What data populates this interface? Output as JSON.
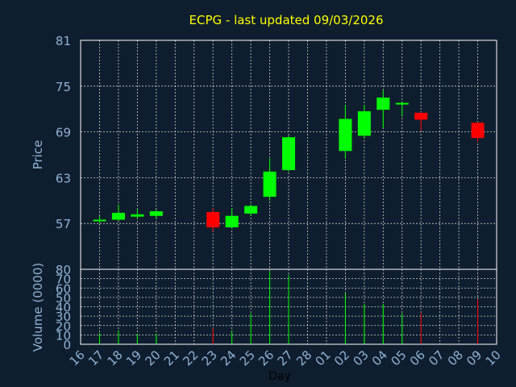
{
  "chart_data": [
    {
      "type": "candlestick",
      "title": "ECPG - last updated 09/03/2026",
      "ylabel": "Price",
      "ylim": [
        51,
        81
      ],
      "yticks": [
        57,
        63,
        69,
        75,
        81
      ],
      "categories": [
        "16",
        "17",
        "18",
        "19",
        "20",
        "21",
        "22",
        "23",
        "24",
        "25",
        "26",
        "27",
        "28",
        "01",
        "02",
        "03",
        "04",
        "05",
        "06",
        "07",
        "08",
        "09",
        "10"
      ],
      "up_color": "#00ff00",
      "down_color": "#ff0000",
      "series": [
        {
          "day": "17",
          "open": 57.3,
          "high": 58.0,
          "low": 57.0,
          "close": 57.5
        },
        {
          "day": "18",
          "open": 57.5,
          "high": 59.5,
          "low": 57.3,
          "close": 58.4
        },
        {
          "day": "19",
          "open": 57.9,
          "high": 58.9,
          "low": 57.6,
          "close": 58.2
        },
        {
          "day": "20",
          "open": 58.0,
          "high": 58.8,
          "low": 57.7,
          "close": 58.6
        },
        {
          "day": "23",
          "open": 58.5,
          "high": 59.0,
          "low": 56.0,
          "close": 56.5
        },
        {
          "day": "24",
          "open": 56.5,
          "high": 59.0,
          "low": 56.3,
          "close": 58.0
        },
        {
          "day": "25",
          "open": 58.3,
          "high": 59.5,
          "low": 58.0,
          "close": 59.3
        },
        {
          "day": "26",
          "open": 60.5,
          "high": 65.5,
          "low": 60.0,
          "close": 63.8
        },
        {
          "day": "27",
          "open": 64.0,
          "high": 68.5,
          "low": 63.8,
          "close": 68.3
        },
        {
          "day": "02",
          "open": 66.5,
          "high": 72.5,
          "low": 65.5,
          "close": 70.7
        },
        {
          "day": "03",
          "open": 68.5,
          "high": 72.5,
          "low": 68.2,
          "close": 71.7
        },
        {
          "day": "04",
          "open": 71.9,
          "high": 74.5,
          "low": 69.5,
          "close": 73.5
        },
        {
          "day": "05",
          "open": 72.6,
          "high": 73.0,
          "low": 71.0,
          "close": 72.8
        },
        {
          "day": "06",
          "open": 71.5,
          "high": 71.6,
          "low": 69.2,
          "close": 70.6
        },
        {
          "day": "09",
          "open": 70.2,
          "high": 70.3,
          "low": 67.7,
          "close": 68.2
        }
      ]
    },
    {
      "type": "bar",
      "ylabel": "Volume (0000)",
      "xlabel": "Day",
      "ylim": [
        0,
        80
      ],
      "yticks": [
        0,
        10,
        20,
        30,
        40,
        50,
        60,
        70,
        80
      ],
      "categories": [
        "16",
        "17",
        "18",
        "19",
        "20",
        "21",
        "22",
        "23",
        "24",
        "25",
        "26",
        "27",
        "28",
        "01",
        "02",
        "03",
        "04",
        "05",
        "06",
        "07",
        "08",
        "09",
        "10"
      ],
      "series": [
        {
          "day": "17",
          "value": 12,
          "direction": "up"
        },
        {
          "day": "18",
          "value": 15,
          "direction": "up"
        },
        {
          "day": "19",
          "value": 11,
          "direction": "up"
        },
        {
          "day": "20",
          "value": 11,
          "direction": "up"
        },
        {
          "day": "23",
          "value": 17,
          "direction": "down"
        },
        {
          "day": "24",
          "value": 14,
          "direction": "up"
        },
        {
          "day": "25",
          "value": 33,
          "direction": "up"
        },
        {
          "day": "26",
          "value": 78,
          "direction": "up"
        },
        {
          "day": "27",
          "value": 74,
          "direction": "up"
        },
        {
          "day": "02",
          "value": 55,
          "direction": "up"
        },
        {
          "day": "03",
          "value": 43,
          "direction": "up"
        },
        {
          "day": "04",
          "value": 43,
          "direction": "up"
        },
        {
          "day": "05",
          "value": 33,
          "direction": "up"
        },
        {
          "day": "06",
          "value": 33,
          "direction": "down"
        },
        {
          "day": "09",
          "value": 48,
          "direction": "down"
        }
      ]
    }
  ]
}
